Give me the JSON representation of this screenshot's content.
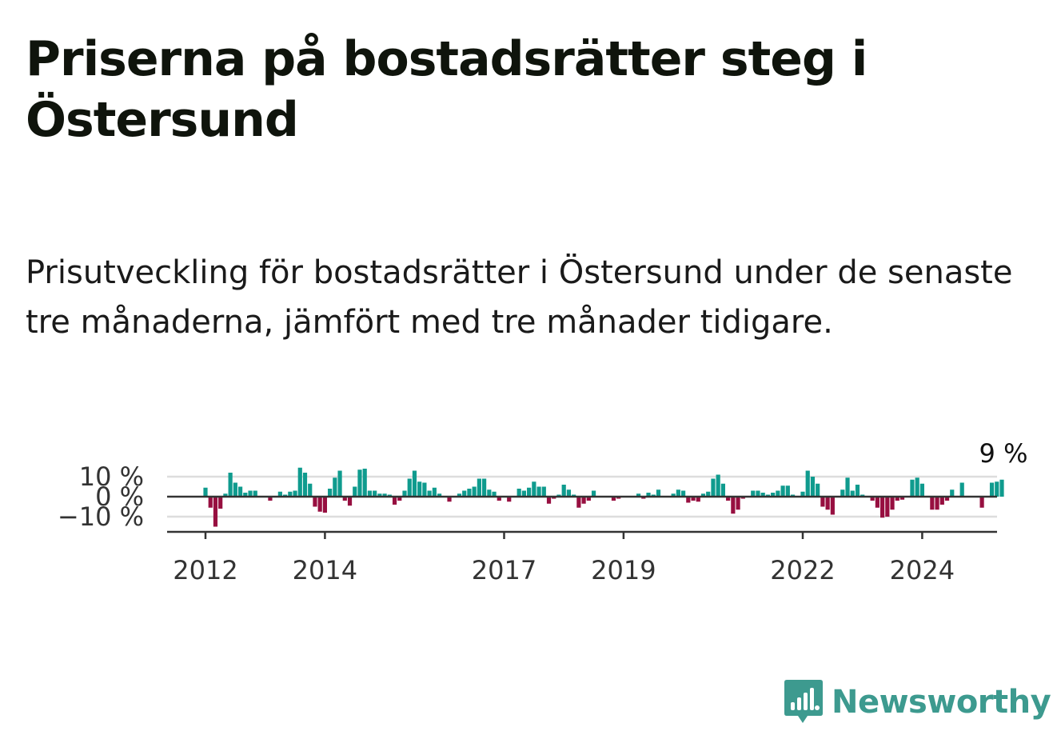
{
  "header": {
    "title": "Priserna på bostadsrätter steg i Östersund",
    "subtitle": "Prisutveckling för bostadsrätter i Östersund under de senaste tre månaderna, jämfört med tre månader tidigare."
  },
  "brand": {
    "name": "Newsworthy",
    "icon": "newsworthy-logo-icon",
    "color": "#3d9a8f"
  },
  "colors": {
    "positive": "#0f9b8e",
    "negative": "#970f40",
    "grid": "#dddddd",
    "axis": "#333333"
  },
  "chart_data": {
    "type": "bar",
    "x_start": "2012-01",
    "ylim": [
      -18,
      12
    ],
    "grid": true,
    "yticks": [
      {
        "value": 10,
        "label": "10 %"
      },
      {
        "value": 0,
        "label": "0 %"
      },
      {
        "value": -10,
        "label": "−10 %"
      }
    ],
    "xticks": [
      "2012",
      "2014",
      "2017",
      "2019",
      "2022",
      "2024"
    ],
    "last_value_label": "9 %",
    "values": [
      4.5,
      -5.5,
      -15,
      -6,
      1.5,
      12,
      7,
      5,
      2,
      3,
      3,
      0,
      0,
      -2,
      0,
      2.5,
      1,
      2.5,
      3,
      14.5,
      12,
      6.5,
      -5,
      -7.5,
      -8,
      4,
      9.5,
      13,
      -2,
      -4.5,
      5,
      13.5,
      14,
      3,
      3,
      1.5,
      1.5,
      1,
      -4,
      -2,
      3,
      9,
      13,
      7.5,
      7,
      3,
      4.5,
      1.5,
      0,
      -2.5,
      0,
      1.5,
      3,
      4,
      5,
      9,
      9,
      3.5,
      2.5,
      -2,
      0,
      -2.5,
      0,
      4,
      3,
      4.5,
      7.5,
      5,
      5,
      -3.5,
      -1,
      1,
      6,
      3.5,
      1,
      -5.5,
      -3.5,
      -2,
      3,
      0,
      0,
      0,
      -2,
      -1,
      0,
      0,
      0,
      1.5,
      -1,
      2,
      1,
      3.5,
      0,
      0,
      1.5,
      3.5,
      3,
      -3,
      -2,
      -2.5,
      1.5,
      2.5,
      9,
      11,
      6.5,
      -2,
      -8.5,
      -6.5,
      -1,
      0,
      3,
      3,
      2,
      1,
      2,
      3,
      5.5,
      5.5,
      1,
      0,
      2.5,
      13,
      10,
      6.5,
      -5,
      -6.5,
      -9,
      0,
      3.5,
      9.5,
      3,
      6,
      1,
      0,
      -2,
      -5.5,
      -10.5,
      -10,
      -6.5,
      -2,
      -1.5,
      0,
      8.5,
      9.5,
      6.5,
      0,
      -6.5,
      -6.5,
      -4,
      -2,
      3.5,
      0,
      7,
      0,
      0,
      0,
      -5.5,
      0,
      7,
      7.5,
      8.5
    ]
  }
}
